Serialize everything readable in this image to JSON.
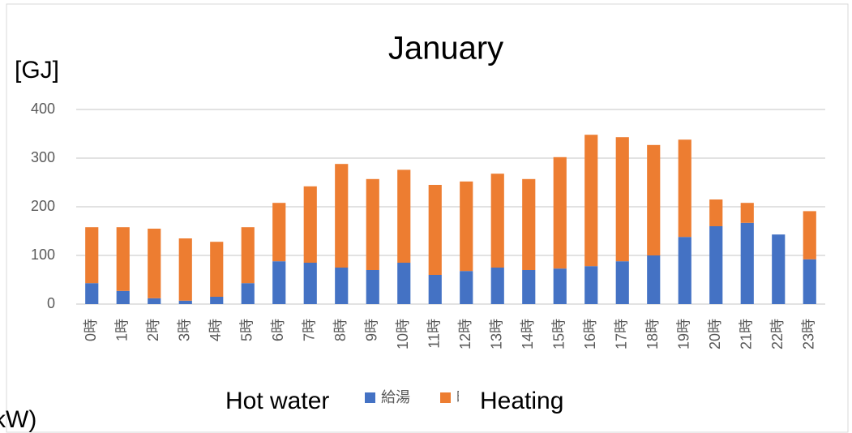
{
  "chart_data": {
    "type": "bar",
    "stacked": true,
    "title": "January",
    "y_label": "[GJ]",
    "categories": [
      "0時",
      "1時",
      "2時",
      "3時",
      "4時",
      "5時",
      "6時",
      "7時",
      "8時",
      "9時",
      "10時",
      "11時",
      "12時",
      "13時",
      "14時",
      "15時",
      "16時",
      "17時",
      "18時",
      "19時",
      "20時",
      "21時",
      "22時",
      "23時"
    ],
    "series": [
      {
        "name": "給湯",
        "color": "#4472c4",
        "values": [
          43,
          27,
          12,
          7,
          15,
          43,
          88,
          85,
          75,
          70,
          85,
          60,
          68,
          75,
          70,
          73,
          78,
          88,
          100,
          138,
          160,
          167,
          143,
          92
        ]
      },
      {
        "name": "暖房",
        "color": "#ed7d31",
        "values": [
          115,
          131,
          143,
          128,
          113,
          115,
          120,
          157,
          213,
          187,
          191,
          185,
          184,
          193,
          187,
          229,
          270,
          255,
          227,
          200,
          55,
          41,
          0,
          99
        ]
      }
    ],
    "ylim": [
      0,
      400
    ],
    "yticks": [
      0,
      100,
      200,
      300,
      400
    ],
    "grid": true,
    "annotations": [
      "Hot water",
      "Heating",
      "kW)"
    ]
  }
}
